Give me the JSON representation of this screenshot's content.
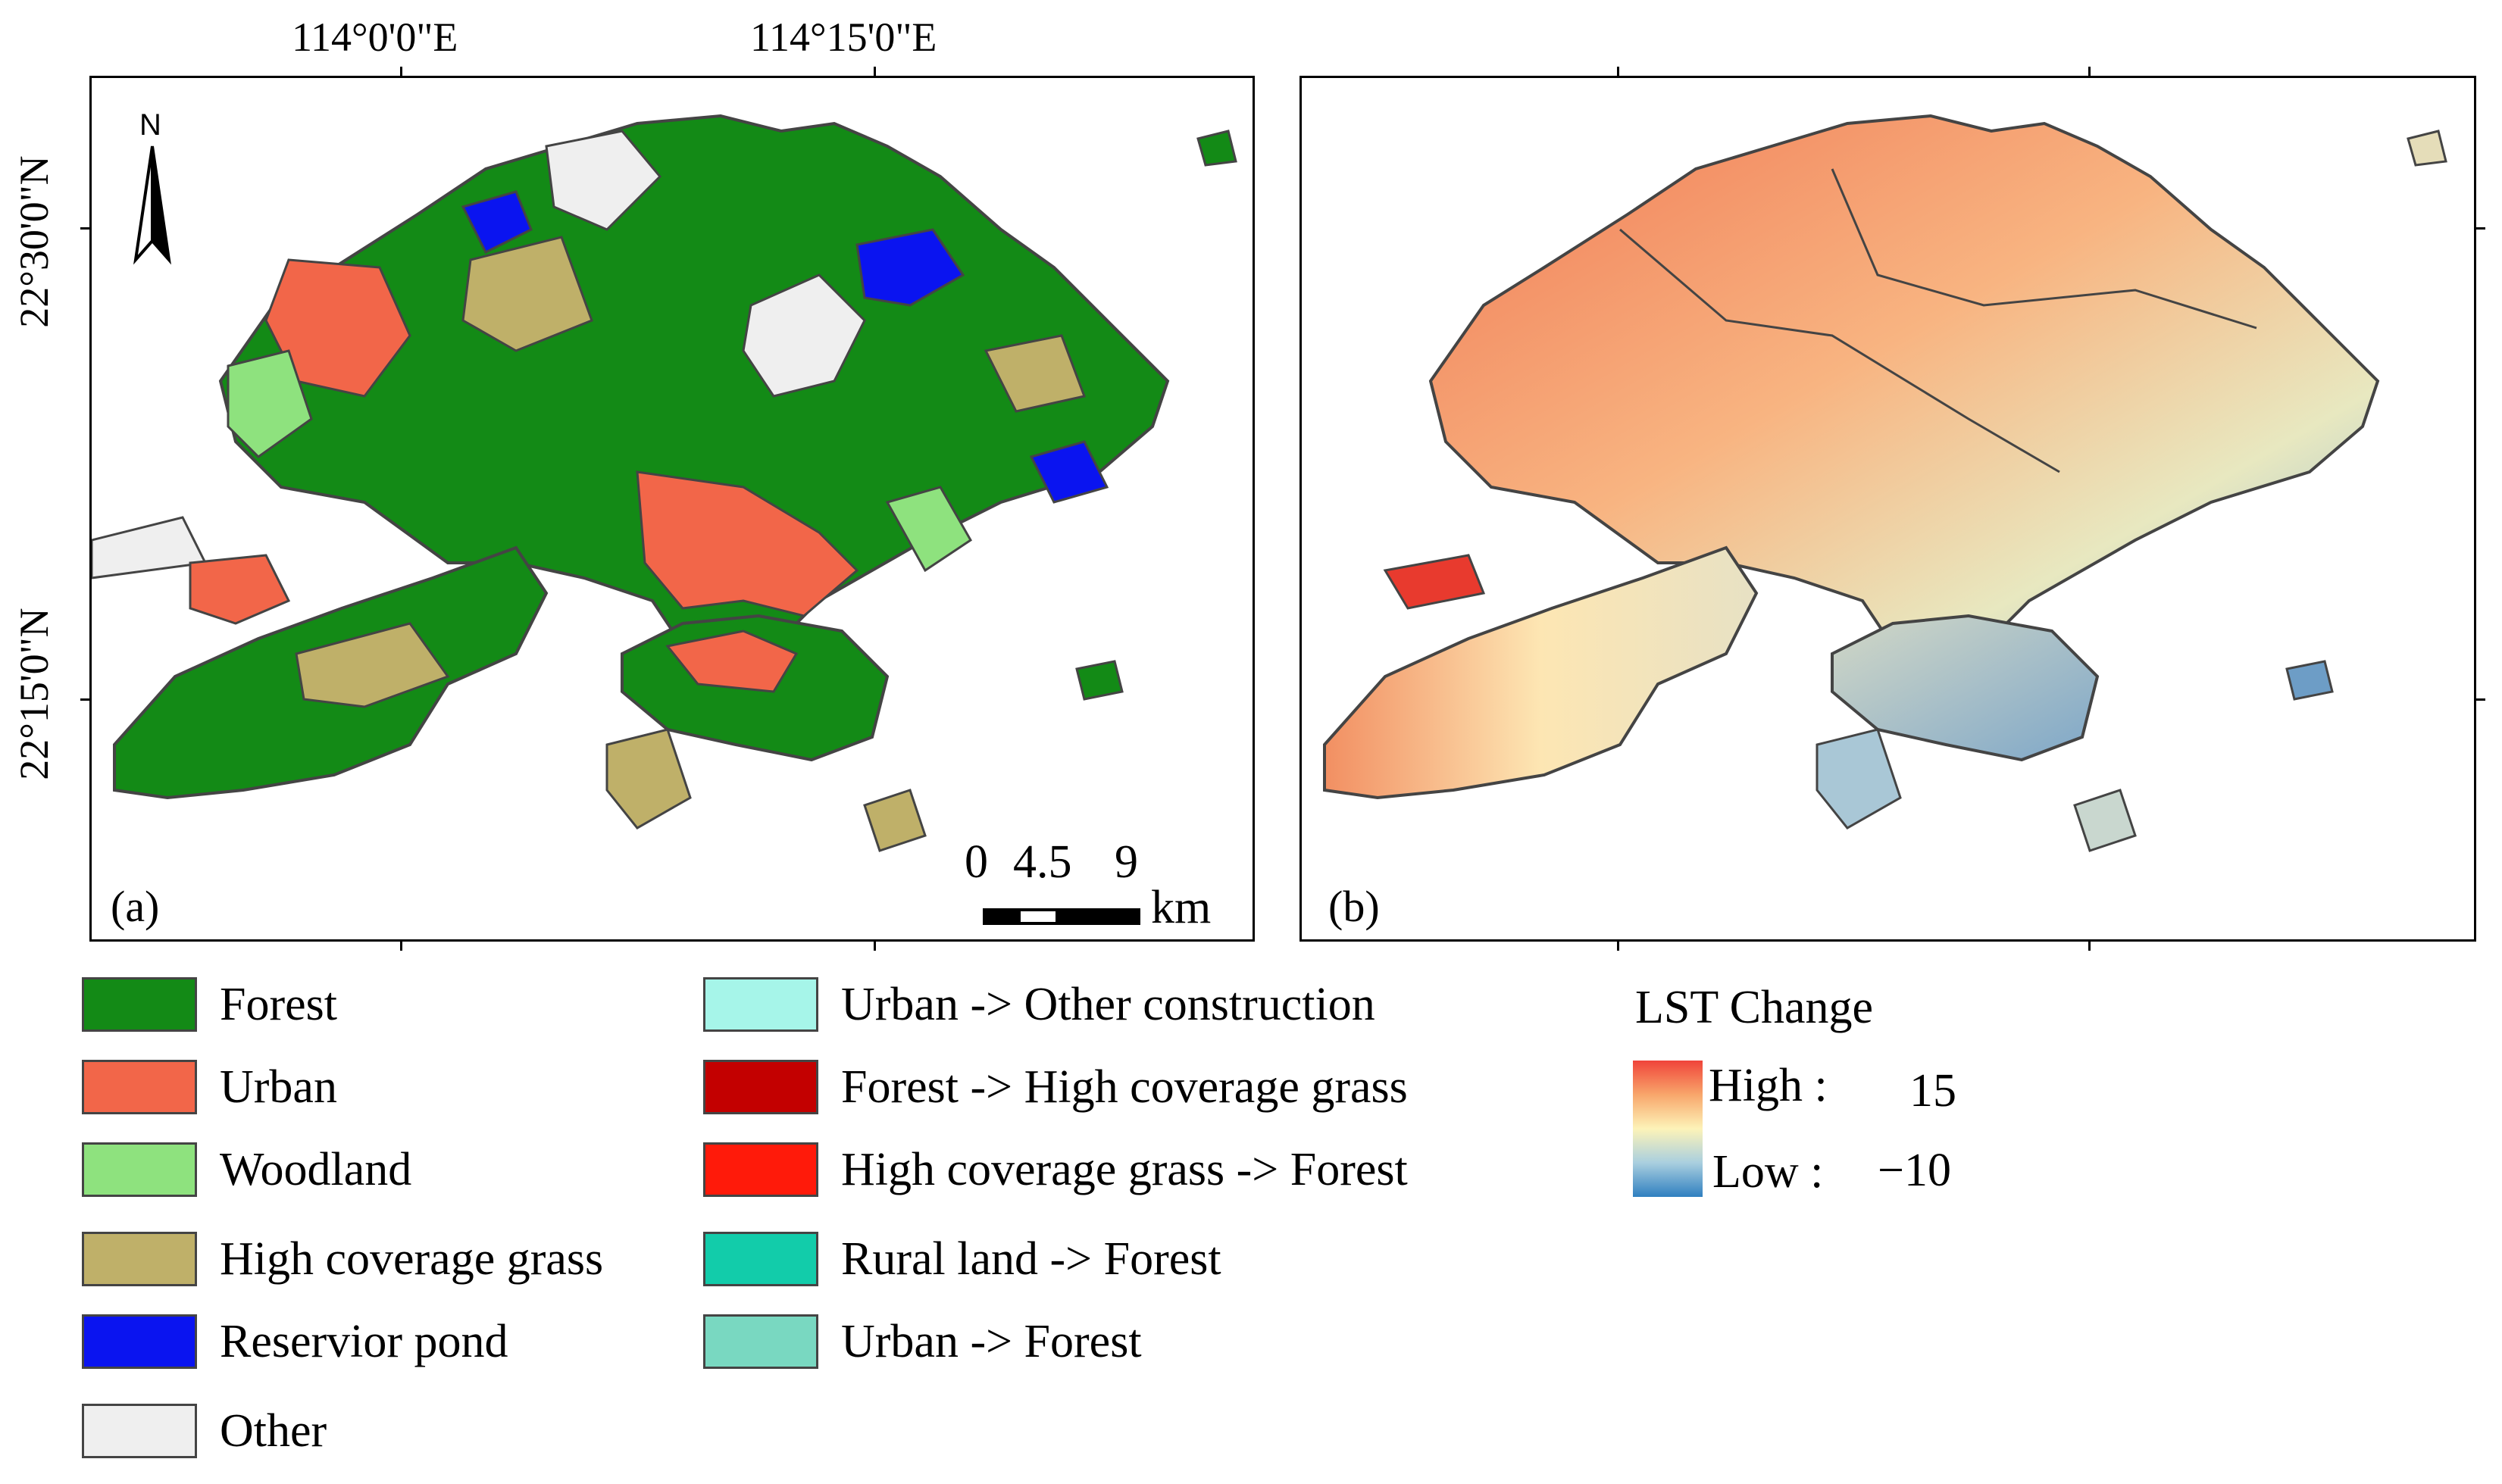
{
  "coords": {
    "lon1": "114°0'0\"E",
    "lon2": "114°15'0\"E",
    "lat1": "22°30'0\"N",
    "lat2": "22°15'0\"N"
  },
  "panel_a": {
    "label": "(a)",
    "north": "N"
  },
  "panel_b": {
    "label": "(b)"
  },
  "scale_bar": {
    "values": [
      "0",
      "4.5",
      "9"
    ],
    "unit": "km"
  },
  "legend_landuse": [
    {
      "label": "Forest",
      "color": "#138a16"
    },
    {
      "label": "Urban",
      "color": "#f26649"
    },
    {
      "label": "Woodland",
      "color": "#8ee27e"
    },
    {
      "label": "High coverage grass",
      "color": "#bfb069"
    },
    {
      "label": "Reservior pond",
      "color": "#0a14f0"
    },
    {
      "label": "Other",
      "color": "#efefef"
    }
  ],
  "legend_change": [
    {
      "label": "Urban -> Other construction",
      "color": "#a6f5e9"
    },
    {
      "label": "Forest -> High coverage grass",
      "color": "#c30000"
    },
    {
      "label": "High coverage grass -> Forest",
      "color": "#ff1a0a"
    },
    {
      "label": "Rural land -> Forest",
      "color": "#12ccaa"
    },
    {
      "label": "Urban -> Forest",
      "color": "#79d8c1"
    }
  ],
  "lst_legend": {
    "title": "LST Change",
    "high_label": "High :",
    "high_value": "15",
    "low_label": "Low :",
    "low_value": "−10"
  }
}
